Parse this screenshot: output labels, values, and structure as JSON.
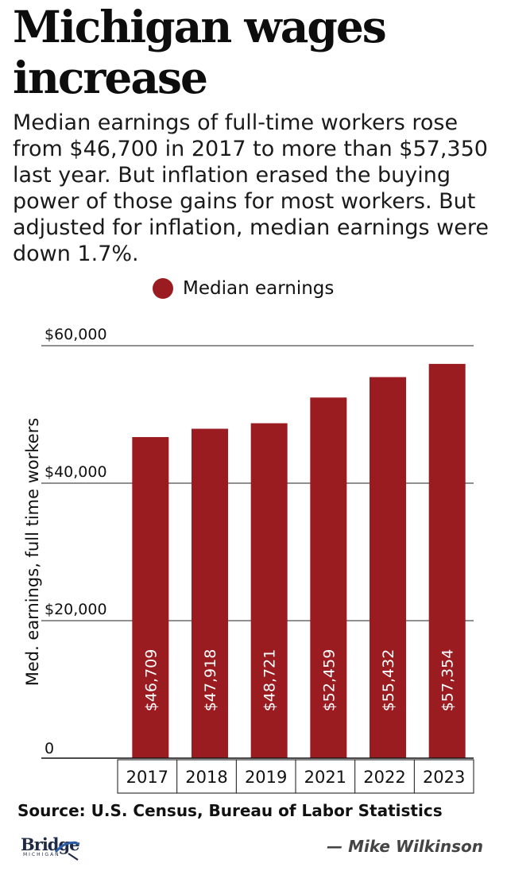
{
  "header": {
    "title": "Michigan wages increase",
    "subtitle": "Median earnings of full-time workers rose from $46,700 in 2017 to more than $57,350 last year. But inflation erased the buying power of those gains for most workers. But adjusted for inflation, median earnings were down 1.7%."
  },
  "chart_data": {
    "type": "bar",
    "title": "Michigan wages increase",
    "categories": [
      "2017",
      "2018",
      "2019",
      "2021",
      "2022",
      "2023"
    ],
    "series": [
      {
        "name": "Median earnings",
        "values": [
          46709,
          47918,
          48721,
          52459,
          55432,
          57354
        ]
      }
    ],
    "data_labels": [
      "$46,709",
      "$47,918",
      "$48,721",
      "$52,459",
      "$55,432",
      "$57,354"
    ],
    "xlabel": "",
    "ylabel": "Med. earnings, full time workers",
    "ylim": [
      0,
      60000
    ],
    "y_ticks": [
      0,
      20000,
      40000,
      60000
    ],
    "y_tick_labels": [
      "0",
      "$20,000",
      "$40,000",
      "$60,000"
    ],
    "grid": true,
    "legend_position": "top-center",
    "bar_color": "#9b1c20"
  },
  "footer": {
    "source": "Source: U.S. Census, Bureau of Labor Statistics",
    "logo": "Bridge MICHIGAN",
    "logo_word": "Bridge",
    "logo_sub": "MICHIGAN",
    "credit": "— Mike Wilkinson"
  }
}
